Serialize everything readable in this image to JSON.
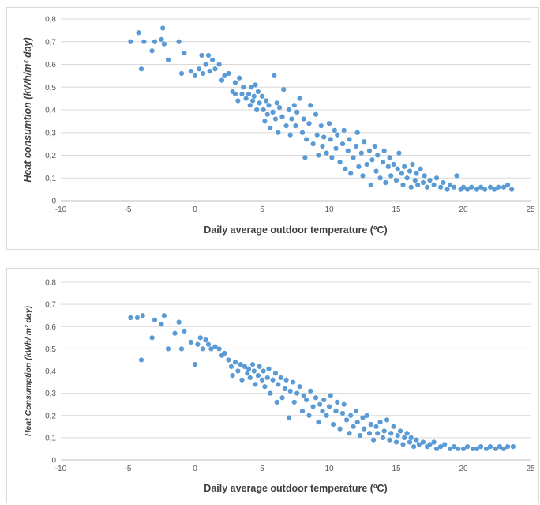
{
  "colors": {
    "marker": "#5b9bd5",
    "grid": "#d9d9d9"
  },
  "chart_data": [
    {
      "type": "scatter",
      "xlabel": "Daily average outdoor temperature  (ºC)",
      "ylabel": "Heat consumtion  (kWh/m² day)",
      "xlim": [
        -10,
        25
      ],
      "ylim": [
        0,
        0.8
      ],
      "x_ticks": [
        "-10",
        "-5",
        "0",
        "5",
        "10",
        "15",
        "20",
        "25"
      ],
      "y_ticks": [
        "0",
        "0,1",
        "0,2",
        "0,3",
        "0,4",
        "0,5",
        "0,6",
        "0,7",
        "0,8"
      ],
      "grid": "horizontal",
      "points": [
        [
          -4.8,
          0.7
        ],
        [
          -4.2,
          0.74
        ],
        [
          -4.0,
          0.58
        ],
        [
          -3.8,
          0.7
        ],
        [
          -3.2,
          0.66
        ],
        [
          -3.0,
          0.7
        ],
        [
          -2.5,
          0.71
        ],
        [
          -2.4,
          0.76
        ],
        [
          -2.3,
          0.69
        ],
        [
          -2.0,
          0.62
        ],
        [
          -1.2,
          0.7
        ],
        [
          -1.0,
          0.56
        ],
        [
          -0.8,
          0.65
        ],
        [
          -0.3,
          0.57
        ],
        [
          0.0,
          0.55
        ],
        [
          0.3,
          0.58
        ],
        [
          0.5,
          0.64
        ],
        [
          0.6,
          0.56
        ],
        [
          0.8,
          0.6
        ],
        [
          1.0,
          0.64
        ],
        [
          1.1,
          0.57
        ],
        [
          1.3,
          0.62
        ],
        [
          1.5,
          0.58
        ],
        [
          1.8,
          0.6
        ],
        [
          2.0,
          0.53
        ],
        [
          2.2,
          0.55
        ],
        [
          2.5,
          0.56
        ],
        [
          2.8,
          0.48
        ],
        [
          3.0,
          0.47
        ],
        [
          3.0,
          0.52
        ],
        [
          3.2,
          0.44
        ],
        [
          3.3,
          0.54
        ],
        [
          3.5,
          0.47
        ],
        [
          3.6,
          0.5
        ],
        [
          3.8,
          0.45
        ],
        [
          4.0,
          0.47
        ],
        [
          4.1,
          0.42
        ],
        [
          4.2,
          0.5
        ],
        [
          4.3,
          0.44
        ],
        [
          4.4,
          0.46
        ],
        [
          4.5,
          0.51
        ],
        [
          4.6,
          0.4
        ],
        [
          4.7,
          0.48
        ],
        [
          4.8,
          0.43
        ],
        [
          5.0,
          0.46
        ],
        [
          5.1,
          0.4
        ],
        [
          5.2,
          0.35
        ],
        [
          5.3,
          0.44
        ],
        [
          5.4,
          0.38
        ],
        [
          5.5,
          0.42
        ],
        [
          5.6,
          0.32
        ],
        [
          5.8,
          0.39
        ],
        [
          5.9,
          0.55
        ],
        [
          6.0,
          0.36
        ],
        [
          6.1,
          0.43
        ],
        [
          6.2,
          0.3
        ],
        [
          6.3,
          0.41
        ],
        [
          6.5,
          0.37
        ],
        [
          6.6,
          0.49
        ],
        [
          6.8,
          0.33
        ],
        [
          7.0,
          0.4
        ],
        [
          7.1,
          0.29
        ],
        [
          7.2,
          0.36
        ],
        [
          7.4,
          0.42
        ],
        [
          7.5,
          0.33
        ],
        [
          7.6,
          0.39
        ],
        [
          7.8,
          0.45
        ],
        [
          8.0,
          0.3
        ],
        [
          8.1,
          0.36
        ],
        [
          8.2,
          0.19
        ],
        [
          8.3,
          0.27
        ],
        [
          8.5,
          0.34
        ],
        [
          8.6,
          0.42
        ],
        [
          8.8,
          0.25
        ],
        [
          9.0,
          0.38
        ],
        [
          9.1,
          0.29
        ],
        [
          9.2,
          0.2
        ],
        [
          9.4,
          0.33
        ],
        [
          9.5,
          0.24
        ],
        [
          9.6,
          0.28
        ],
        [
          9.8,
          0.21
        ],
        [
          10.0,
          0.34
        ],
        [
          10.1,
          0.27
        ],
        [
          10.2,
          0.19
        ],
        [
          10.4,
          0.31
        ],
        [
          10.5,
          0.23
        ],
        [
          10.6,
          0.29
        ],
        [
          10.8,
          0.17
        ],
        [
          11.0,
          0.25
        ],
        [
          11.1,
          0.31
        ],
        [
          11.2,
          0.14
        ],
        [
          11.4,
          0.22
        ],
        [
          11.5,
          0.27
        ],
        [
          11.6,
          0.12
        ],
        [
          11.8,
          0.19
        ],
        [
          12.0,
          0.24
        ],
        [
          12.1,
          0.3
        ],
        [
          12.2,
          0.15
        ],
        [
          12.4,
          0.21
        ],
        [
          12.5,
          0.11
        ],
        [
          12.6,
          0.26
        ],
        [
          12.8,
          0.16
        ],
        [
          13.0,
          0.22
        ],
        [
          13.1,
          0.07
        ],
        [
          13.2,
          0.18
        ],
        [
          13.4,
          0.24
        ],
        [
          13.5,
          0.13
        ],
        [
          13.6,
          0.2
        ],
        [
          13.8,
          0.1
        ],
        [
          14.0,
          0.17
        ],
        [
          14.1,
          0.22
        ],
        [
          14.2,
          0.08
        ],
        [
          14.4,
          0.15
        ],
        [
          14.5,
          0.19
        ],
        [
          14.6,
          0.11
        ],
        [
          14.8,
          0.16
        ],
        [
          15.0,
          0.09
        ],
        [
          15.1,
          0.14
        ],
        [
          15.2,
          0.21
        ],
        [
          15.4,
          0.12
        ],
        [
          15.5,
          0.07
        ],
        [
          15.6,
          0.15
        ],
        [
          15.8,
          0.1
        ],
        [
          16.0,
          0.13
        ],
        [
          16.1,
          0.06
        ],
        [
          16.2,
          0.16
        ],
        [
          16.4,
          0.09
        ],
        [
          16.5,
          0.12
        ],
        [
          16.6,
          0.07
        ],
        [
          16.8,
          0.14
        ],
        [
          17.0,
          0.08
        ],
        [
          17.1,
          0.11
        ],
        [
          17.3,
          0.06
        ],
        [
          17.5,
          0.09
        ],
        [
          17.8,
          0.07
        ],
        [
          18.0,
          0.1
        ],
        [
          18.3,
          0.06
        ],
        [
          18.5,
          0.08
        ],
        [
          18.8,
          0.05
        ],
        [
          19.0,
          0.07
        ],
        [
          19.3,
          0.06
        ],
        [
          19.5,
          0.11
        ],
        [
          19.8,
          0.05
        ],
        [
          20.0,
          0.06
        ],
        [
          20.3,
          0.05
        ],
        [
          20.6,
          0.06
        ],
        [
          21.0,
          0.05
        ],
        [
          21.3,
          0.06
        ],
        [
          21.6,
          0.05
        ],
        [
          22.0,
          0.06
        ],
        [
          22.3,
          0.05
        ],
        [
          22.6,
          0.06
        ],
        [
          23.0,
          0.06
        ],
        [
          23.3,
          0.07
        ],
        [
          23.6,
          0.05
        ]
      ]
    },
    {
      "type": "scatter",
      "xlabel": "Daily average outdoor temperature  (ºC)",
      "ylabel": "Heat Consumption  (kWh/ m² day)",
      "xlim": [
        -10,
        25
      ],
      "ylim": [
        0,
        0.8
      ],
      "x_ticks": [
        "-10",
        "-5",
        "0",
        "5",
        "10",
        "15",
        "20",
        "25"
      ],
      "y_ticks": [
        "0",
        "0,1",
        "0,2",
        "0,3",
        "0,4",
        "0,5",
        "0,6",
        "0,7",
        "0,8"
      ],
      "grid": "horizontal",
      "points": [
        [
          -4.8,
          0.64
        ],
        [
          -4.3,
          0.64
        ],
        [
          -4.0,
          0.45
        ],
        [
          -3.9,
          0.65
        ],
        [
          -3.2,
          0.55
        ],
        [
          -3.0,
          0.63
        ],
        [
          -2.5,
          0.61
        ],
        [
          -2.3,
          0.65
        ],
        [
          -2.0,
          0.5
        ],
        [
          -1.5,
          0.57
        ],
        [
          -1.2,
          0.62
        ],
        [
          -1.0,
          0.5
        ],
        [
          -0.8,
          0.58
        ],
        [
          -0.3,
          0.53
        ],
        [
          0.0,
          0.43
        ],
        [
          0.2,
          0.52
        ],
        [
          0.4,
          0.55
        ],
        [
          0.6,
          0.5
        ],
        [
          0.8,
          0.54
        ],
        [
          1.0,
          0.52
        ],
        [
          1.2,
          0.5
        ],
        [
          1.5,
          0.51
        ],
        [
          1.8,
          0.5
        ],
        [
          2.0,
          0.47
        ],
        [
          2.2,
          0.48
        ],
        [
          2.5,
          0.45
        ],
        [
          2.7,
          0.42
        ],
        [
          2.8,
          0.38
        ],
        [
          3.0,
          0.44
        ],
        [
          3.2,
          0.4
        ],
        [
          3.4,
          0.43
        ],
        [
          3.5,
          0.36
        ],
        [
          3.7,
          0.42
        ],
        [
          3.9,
          0.39
        ],
        [
          4.0,
          0.41
        ],
        [
          4.1,
          0.37
        ],
        [
          4.3,
          0.43
        ],
        [
          4.4,
          0.4
        ],
        [
          4.5,
          0.34
        ],
        [
          4.7,
          0.38
        ],
        [
          4.8,
          0.42
        ],
        [
          5.0,
          0.36
        ],
        [
          5.1,
          0.4
        ],
        [
          5.2,
          0.33
        ],
        [
          5.4,
          0.37
        ],
        [
          5.5,
          0.41
        ],
        [
          5.6,
          0.3
        ],
        [
          5.8,
          0.36
        ],
        [
          6.0,
          0.39
        ],
        [
          6.1,
          0.26
        ],
        [
          6.2,
          0.34
        ],
        [
          6.4,
          0.37
        ],
        [
          6.5,
          0.28
        ],
        [
          6.7,
          0.32
        ],
        [
          6.8,
          0.36
        ],
        [
          7.0,
          0.19
        ],
        [
          7.1,
          0.31
        ],
        [
          7.3,
          0.35
        ],
        [
          7.4,
          0.26
        ],
        [
          7.6,
          0.3
        ],
        [
          7.8,
          0.33
        ],
        [
          8.0,
          0.22
        ],
        [
          8.1,
          0.29
        ],
        [
          8.3,
          0.27
        ],
        [
          8.5,
          0.2
        ],
        [
          8.6,
          0.31
        ],
        [
          8.8,
          0.24
        ],
        [
          9.0,
          0.28
        ],
        [
          9.2,
          0.17
        ],
        [
          9.3,
          0.25
        ],
        [
          9.5,
          0.22
        ],
        [
          9.6,
          0.27
        ],
        [
          9.8,
          0.2
        ],
        [
          10.0,
          0.24
        ],
        [
          10.1,
          0.29
        ],
        [
          10.3,
          0.16
        ],
        [
          10.5,
          0.22
        ],
        [
          10.6,
          0.26
        ],
        [
          10.8,
          0.14
        ],
        [
          11.0,
          0.21
        ],
        [
          11.1,
          0.25
        ],
        [
          11.3,
          0.18
        ],
        [
          11.5,
          0.12
        ],
        [
          11.6,
          0.2
        ],
        [
          11.8,
          0.15
        ],
        [
          12.0,
          0.22
        ],
        [
          12.1,
          0.17
        ],
        [
          12.3,
          0.11
        ],
        [
          12.5,
          0.19
        ],
        [
          12.6,
          0.14
        ],
        [
          12.8,
          0.2
        ],
        [
          13.0,
          0.12
        ],
        [
          13.1,
          0.16
        ],
        [
          13.3,
          0.09
        ],
        [
          13.5,
          0.15
        ],
        [
          13.6,
          0.12
        ],
        [
          13.8,
          0.17
        ],
        [
          14.0,
          0.1
        ],
        [
          14.1,
          0.13
        ],
        [
          14.3,
          0.18
        ],
        [
          14.5,
          0.09
        ],
        [
          14.6,
          0.12
        ],
        [
          14.8,
          0.15
        ],
        [
          15.0,
          0.08
        ],
        [
          15.1,
          0.11
        ],
        [
          15.3,
          0.13
        ],
        [
          15.5,
          0.07
        ],
        [
          15.6,
          0.1
        ],
        [
          15.8,
          0.12
        ],
        [
          16.0,
          0.08
        ],
        [
          16.1,
          0.1
        ],
        [
          16.3,
          0.06
        ],
        [
          16.5,
          0.09
        ],
        [
          16.7,
          0.07
        ],
        [
          17.0,
          0.08
        ],
        [
          17.3,
          0.06
        ],
        [
          17.5,
          0.07
        ],
        [
          17.8,
          0.08
        ],
        [
          18.0,
          0.05
        ],
        [
          18.3,
          0.06
        ],
        [
          18.6,
          0.07
        ],
        [
          19.0,
          0.05
        ],
        [
          19.3,
          0.06
        ],
        [
          19.6,
          0.05
        ],
        [
          20.0,
          0.05
        ],
        [
          20.3,
          0.06
        ],
        [
          20.7,
          0.05
        ],
        [
          21.0,
          0.05
        ],
        [
          21.3,
          0.06
        ],
        [
          21.7,
          0.05
        ],
        [
          22.0,
          0.06
        ],
        [
          22.4,
          0.05
        ],
        [
          22.7,
          0.06
        ],
        [
          23.0,
          0.05
        ],
        [
          23.3,
          0.06
        ],
        [
          23.7,
          0.06
        ]
      ]
    }
  ]
}
